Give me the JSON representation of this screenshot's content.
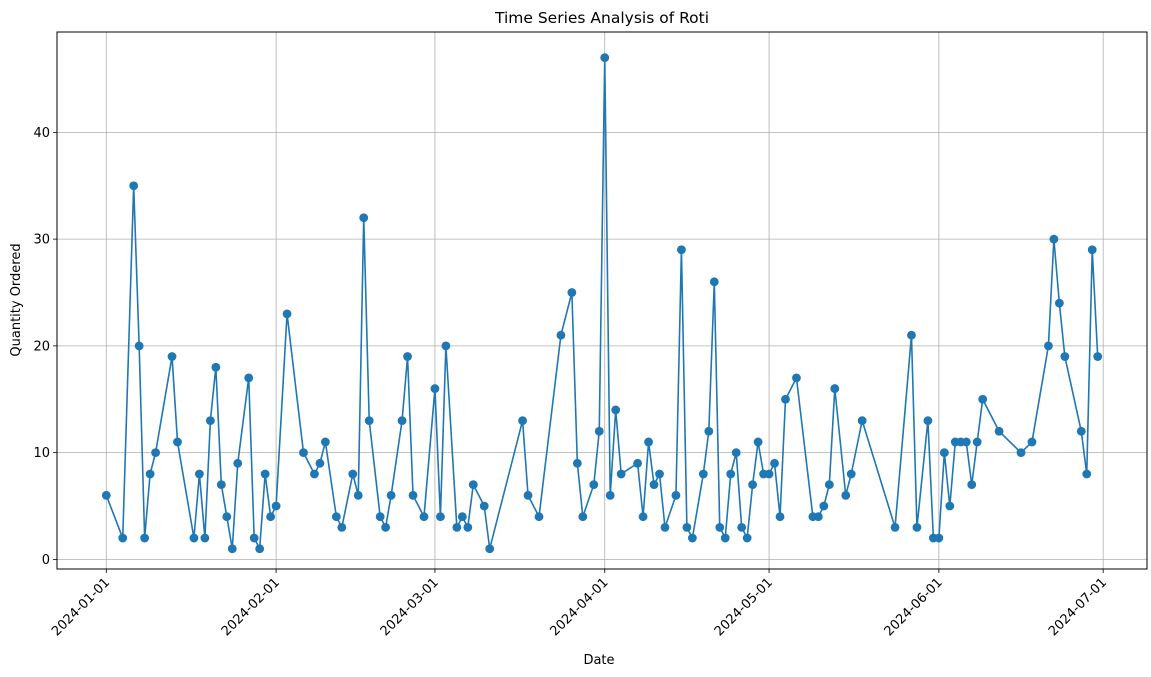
{
  "chart_data": {
    "type": "line",
    "title": "Time Series Analysis of Roti",
    "xlabel": "Date",
    "ylabel": "Quantity Ordered",
    "series": [
      {
        "color": "#1f77b4",
        "marker": "circle",
        "points": [
          [
            "2024-01-01",
            6
          ],
          [
            "2024-01-04",
            2
          ],
          [
            "2024-01-06",
            35
          ],
          [
            "2024-01-07",
            20
          ],
          [
            "2024-01-08",
            2
          ],
          [
            "2024-01-09",
            8
          ],
          [
            "2024-01-10",
            10
          ],
          [
            "2024-01-13",
            19
          ],
          [
            "2024-01-14",
            11
          ],
          [
            "2024-01-17",
            2
          ],
          [
            "2024-01-18",
            8
          ],
          [
            "2024-01-19",
            2
          ],
          [
            "2024-01-20",
            13
          ],
          [
            "2024-01-21",
            18
          ],
          [
            "2024-01-22",
            7
          ],
          [
            "2024-01-23",
            4
          ],
          [
            "2024-01-24",
            1
          ],
          [
            "2024-01-25",
            9
          ],
          [
            "2024-01-27",
            17
          ],
          [
            "2024-01-28",
            2
          ],
          [
            "2024-01-29",
            1
          ],
          [
            "2024-01-30",
            8
          ],
          [
            "2024-01-31",
            4
          ],
          [
            "2024-02-01",
            5
          ],
          [
            "2024-02-03",
            23
          ],
          [
            "2024-02-06",
            10
          ],
          [
            "2024-02-08",
            8
          ],
          [
            "2024-02-09",
            9
          ],
          [
            "2024-02-10",
            11
          ],
          [
            "2024-02-12",
            4
          ],
          [
            "2024-02-13",
            3
          ],
          [
            "2024-02-15",
            8
          ],
          [
            "2024-02-16",
            6
          ],
          [
            "2024-02-17",
            32
          ],
          [
            "2024-02-18",
            13
          ],
          [
            "2024-02-20",
            4
          ],
          [
            "2024-02-21",
            3
          ],
          [
            "2024-02-22",
            6
          ],
          [
            "2024-02-24",
            13
          ],
          [
            "2024-02-25",
            19
          ],
          [
            "2024-02-26",
            6
          ],
          [
            "2024-02-28",
            4
          ],
          [
            "2024-03-01",
            16
          ],
          [
            "2024-03-02",
            4
          ],
          [
            "2024-03-03",
            20
          ],
          [
            "2024-03-05",
            3
          ],
          [
            "2024-03-06",
            4
          ],
          [
            "2024-03-07",
            3
          ],
          [
            "2024-03-08",
            7
          ],
          [
            "2024-03-10",
            5
          ],
          [
            "2024-03-11",
            1
          ],
          [
            "2024-03-17",
            13
          ],
          [
            "2024-03-18",
            6
          ],
          [
            "2024-03-20",
            4
          ],
          [
            "2024-03-24",
            21
          ],
          [
            "2024-03-26",
            25
          ],
          [
            "2024-03-27",
            9
          ],
          [
            "2024-03-28",
            4
          ],
          [
            "2024-03-30",
            7
          ],
          [
            "2024-03-31",
            12
          ],
          [
            "2024-04-01",
            47
          ],
          [
            "2024-04-02",
            6
          ],
          [
            "2024-04-03",
            14
          ],
          [
            "2024-04-04",
            8
          ],
          [
            "2024-04-07",
            9
          ],
          [
            "2024-04-08",
            4
          ],
          [
            "2024-04-09",
            11
          ],
          [
            "2024-04-10",
            7
          ],
          [
            "2024-04-11",
            8
          ],
          [
            "2024-04-12",
            3
          ],
          [
            "2024-04-14",
            6
          ],
          [
            "2024-04-15",
            29
          ],
          [
            "2024-04-16",
            3
          ],
          [
            "2024-04-17",
            2
          ],
          [
            "2024-04-19",
            8
          ],
          [
            "2024-04-20",
            12
          ],
          [
            "2024-04-21",
            26
          ],
          [
            "2024-04-22",
            3
          ],
          [
            "2024-04-23",
            2
          ],
          [
            "2024-04-24",
            8
          ],
          [
            "2024-04-25",
            10
          ],
          [
            "2024-04-26",
            3
          ],
          [
            "2024-04-27",
            2
          ],
          [
            "2024-04-28",
            7
          ],
          [
            "2024-04-29",
            11
          ],
          [
            "2024-04-30",
            8
          ],
          [
            "2024-05-01",
            8
          ],
          [
            "2024-05-02",
            9
          ],
          [
            "2024-05-03",
            4
          ],
          [
            "2024-05-04",
            15
          ],
          [
            "2024-05-06",
            17
          ],
          [
            "2024-05-09",
            4
          ],
          [
            "2024-05-10",
            4
          ],
          [
            "2024-05-11",
            5
          ],
          [
            "2024-05-12",
            7
          ],
          [
            "2024-05-13",
            16
          ],
          [
            "2024-05-15",
            6
          ],
          [
            "2024-05-16",
            8
          ],
          [
            "2024-05-18",
            13
          ],
          [
            "2024-05-24",
            3
          ],
          [
            "2024-05-27",
            21
          ],
          [
            "2024-05-28",
            3
          ],
          [
            "2024-05-30",
            13
          ],
          [
            "2024-05-31",
            2
          ],
          [
            "2024-06-01",
            2
          ],
          [
            "2024-06-02",
            10
          ],
          [
            "2024-06-03",
            5
          ],
          [
            "2024-06-04",
            11
          ],
          [
            "2024-06-05",
            11
          ],
          [
            "2024-06-06",
            11
          ],
          [
            "2024-06-07",
            7
          ],
          [
            "2024-06-08",
            11
          ],
          [
            "2024-06-09",
            15
          ],
          [
            "2024-06-12",
            12
          ],
          [
            "2024-06-16",
            10
          ],
          [
            "2024-06-18",
            11
          ],
          [
            "2024-06-21",
            20
          ],
          [
            "2024-06-22",
            30
          ],
          [
            "2024-06-23",
            24
          ],
          [
            "2024-06-24",
            19
          ],
          [
            "2024-06-27",
            12
          ],
          [
            "2024-06-28",
            8
          ],
          [
            "2024-06-29",
            29
          ],
          [
            "2024-06-30",
            19
          ]
        ]
      }
    ],
    "xlim": [
      "2023-12-23",
      "2024-07-09"
    ],
    "ylim": [
      -0.9,
      49.4
    ],
    "x_ticks": [
      "2024-01-01",
      "2024-02-01",
      "2024-03-01",
      "2024-04-01",
      "2024-05-01",
      "2024-06-01",
      "2024-07-01"
    ],
    "y_ticks": [
      0,
      10,
      20,
      30,
      40
    ],
    "grid": true,
    "x_tick_rotation": 45
  }
}
